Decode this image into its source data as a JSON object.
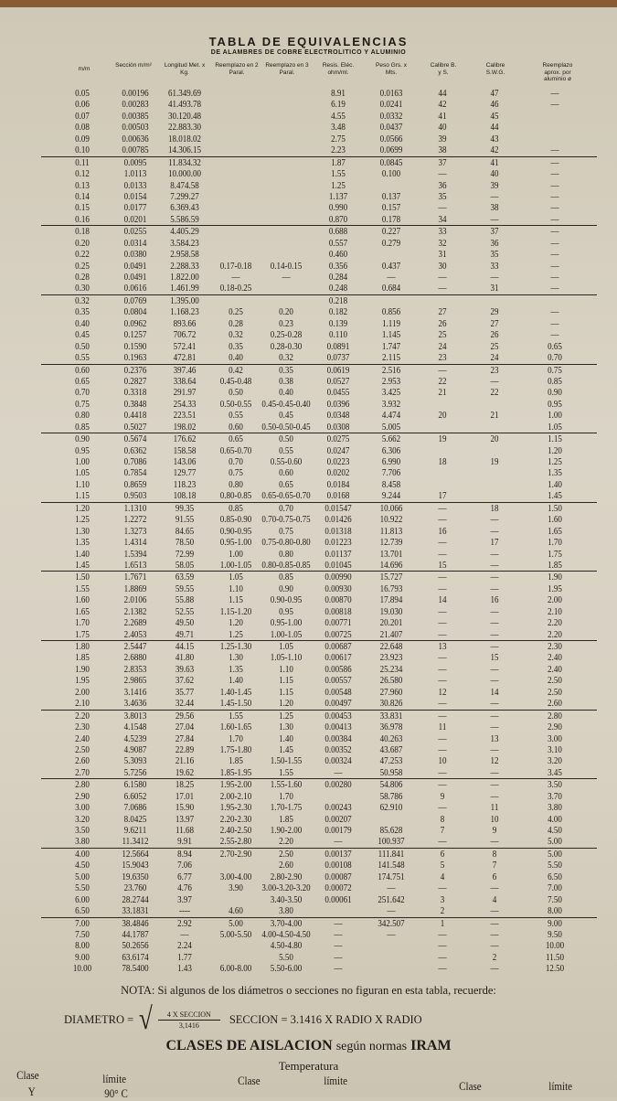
{
  "title": "TABLA DE EQUIVALENCIAS",
  "subtitle": "DE ALAMBRES DE COBRE ELECTROLITICO Y ALUMINIO",
  "columns": [
    "m/m",
    "Sección m/m²",
    "Longitud Met. x Kg.",
    "Reemplazo en 2 Paral.",
    "Reemplazo en 3 Paral.",
    "Resis. Eléc. ohm/ml.",
    "Peso Grs. x Mts.",
    "Calibre B. y S.",
    "Calibre S.W.G.",
    "Reemplazo aprox. por aluminio ø"
  ],
  "rows": [
    [
      "0.05",
      "0.00196",
      "61.349.69",
      "",
      "",
      "8.91",
      "0.0163",
      "44",
      "47",
      "—"
    ],
    [
      "0.06",
      "0.00283",
      "41.493.78",
      "",
      "",
      "6.19",
      "0.0241",
      "42",
      "46",
      "—"
    ],
    [
      "0.07",
      "0.00385",
      "30.120.48",
      "",
      "",
      "4.55",
      "0.0332",
      "41",
      "45",
      ""
    ],
    [
      "0.08",
      "0.00503",
      "22.883.30",
      "",
      "",
      "3.48",
      "0.0437",
      "40",
      "44",
      ""
    ],
    [
      "0.09",
      "0.00636",
      "18.018.02",
      "",
      "",
      "2.75",
      "0.0566",
      "39",
      "43",
      ""
    ],
    [
      "0.10",
      "0.00785",
      "14.306.15",
      "",
      "",
      "2.23",
      "0.0699",
      "38",
      "42",
      "—"
    ],
    [
      "0.11",
      "0.0095",
      "11.834.32",
      "",
      "",
      "1.87",
      "0.0845",
      "37",
      "41",
      "—"
    ],
    [
      "0.12",
      "1.0113",
      "10.000.00",
      "",
      "",
      "1.55",
      "0.100",
      "—",
      "40",
      "—"
    ],
    [
      "0.13",
      "0.0133",
      "8.474.58",
      "",
      "",
      "1.25",
      "",
      "36",
      "39",
      "—"
    ],
    [
      "0.14",
      "0.0154",
      "7.299.27",
      "",
      "",
      "1.137",
      "0.137",
      "35",
      "—",
      "—"
    ],
    [
      "0.15",
      "0.0177",
      "6.369.43",
      "",
      "",
      "0.990",
      "0.157",
      "—",
      "38",
      "—"
    ],
    [
      "0.16",
      "0.0201",
      "5.586.59",
      "",
      "",
      "0.870",
      "0.178",
      "34",
      "—",
      "—"
    ],
    [
      "0.18",
      "0.0255",
      "4.405.29",
      "",
      "",
      "0.688",
      "0.227",
      "33",
      "37",
      "—"
    ],
    [
      "0.20",
      "0.0314",
      "3.584.23",
      "",
      "",
      "0.557",
      "0.279",
      "32",
      "36",
      "—"
    ],
    [
      "0.22",
      "0.0380",
      "2.958.58",
      "",
      "",
      "0.460",
      "",
      "31",
      "35",
      "—"
    ],
    [
      "0.25",
      "0.0491",
      "2.288.33",
      "0.17-0.18",
      "0.14-0.15",
      "0.356",
      "0.437",
      "30",
      "33",
      "—"
    ],
    [
      "0.28",
      "0.0491",
      "1.822.00",
      "—",
      "—",
      "0.284",
      "—",
      "—",
      "—",
      "—"
    ],
    [
      "0.30",
      "0.0616",
      "1.461.99",
      "0.18-0.25",
      "",
      "0.248",
      "0.684",
      "—",
      "31",
      "—"
    ],
    [
      "0.32",
      "0.0769",
      "1.395.00",
      "",
      "",
      "0.218",
      "",
      "",
      "",
      ""
    ],
    [
      "0.35",
      "0.0804",
      "1.168.23",
      "0.25",
      "0.20",
      "0.182",
      "0.856",
      "27",
      "29",
      "—"
    ],
    [
      "0.40",
      "0.0962",
      "893.66",
      "0.28",
      "0.23",
      "0.139",
      "1.119",
      "26",
      "27",
      "—"
    ],
    [
      "0.45",
      "0.1257",
      "706.72",
      "0.32",
      "0.25-0.28",
      "0.110",
      "1.145",
      "25",
      "26",
      "—"
    ],
    [
      "0.50",
      "0.1590",
      "572.41",
      "0.35",
      "0.28-0.30",
      "0.0891",
      "1.747",
      "24",
      "25",
      "0.65"
    ],
    [
      "0.55",
      "0.1963",
      "472.81",
      "0.40",
      "0.32",
      "0.0737",
      "2.115",
      "23",
      "24",
      "0.70"
    ],
    [
      "0.60",
      "0.2376",
      "397.46",
      "0.42",
      "0.35",
      "0.0619",
      "2.516",
      "—",
      "23",
      "0.75"
    ],
    [
      "0.65",
      "0.2827",
      "338.64",
      "0.45-0.48",
      "0.38",
      "0.0527",
      "2.953",
      "22",
      "—",
      "0.85"
    ],
    [
      "0.70",
      "0.3318",
      "291.97",
      "0.50",
      "0.40",
      "0.0455",
      "3.425",
      "21",
      "22",
      "0.90"
    ],
    [
      "0.75",
      "0.3848",
      "254.33",
      "0.50-0.55",
      "0.45-0.45-0.40",
      "0.0396",
      "3.932",
      "",
      "",
      "0.95"
    ],
    [
      "0.80",
      "0.4418",
      "223.51",
      "0.55",
      "0.45",
      "0.0348",
      "4.474",
      "20",
      "21",
      "1.00"
    ],
    [
      "0.85",
      "0.5027",
      "198.02",
      "0.60",
      "0.50-0.50-0.45",
      "0.0308",
      "5.005",
      "",
      "",
      "1.05"
    ],
    [
      "0.90",
      "0.5674",
      "176.62",
      "0.65",
      "0.50",
      "0.0275",
      "5.662",
      "19",
      "20",
      "1.15"
    ],
    [
      "0.95",
      "0.6362",
      "158.58",
      "0.65-0.70",
      "0.55",
      "0.0247",
      "6.306",
      "",
      "",
      "1.20"
    ],
    [
      "1.00",
      "0.7086",
      "143.06",
      "0.70",
      "0.55-0.60",
      "0.0223",
      "6.990",
      "18",
      "19",
      "1.25"
    ],
    [
      "1.05",
      "0.7854",
      "129.77",
      "0.75",
      "0.60",
      "0.0202",
      "7.706",
      "",
      "",
      "1.35"
    ],
    [
      "1.10",
      "0.8659",
      "118.23",
      "0.80",
      "0.65",
      "0.0184",
      "8.458",
      "",
      "",
      "1.40"
    ],
    [
      "1.15",
      "0.9503",
      "108.18",
      "0.80-0.85",
      "0.65-0.65-0.70",
      "0.0168",
      "9.244",
      "17",
      "",
      "1.45"
    ],
    [
      "1.20",
      "1.1310",
      "99.35",
      "0.85",
      "0.70",
      "0.01547",
      "10.066",
      "—",
      "18",
      "1.50"
    ],
    [
      "1.25",
      "1.2272",
      "91.55",
      "0.85-0.90",
      "0.70-0.75-0.75",
      "0.01426",
      "10.922",
      "—",
      "—",
      "1.60"
    ],
    [
      "1.30",
      "1.3273",
      "84.65",
      "0.90-0.95",
      "0.75",
      "0.01318",
      "11.813",
      "16",
      "—",
      "1.65"
    ],
    [
      "1.35",
      "1.4314",
      "78.50",
      "0.95-1.00",
      "0.75-0.80-0.80",
      "0.01223",
      "12.739",
      "—",
      "17",
      "1.70"
    ],
    [
      "1.40",
      "1.5394",
      "72.99",
      "1.00",
      "0.80",
      "0.01137",
      "13.701",
      "—",
      "—",
      "1.75"
    ],
    [
      "1.45",
      "1.6513",
      "58.05",
      "1.00-1.05",
      "0.80-0.85-0.85",
      "0.01045",
      "14.696",
      "15",
      "—",
      "1.85"
    ],
    [
      "1.50",
      "1.7671",
      "63.59",
      "1.05",
      "0.85",
      "0.00990",
      "15.727",
      "—",
      "—",
      "1.90"
    ],
    [
      "1.55",
      "1.8869",
      "59.55",
      "1.10",
      "0.90",
      "0.00930",
      "16.793",
      "—",
      "—",
      "1.95"
    ],
    [
      "1.60",
      "2.0106",
      "55.88",
      "1.15",
      "0.90-0.95",
      "0.00870",
      "17.894",
      "14",
      "16",
      "2.00"
    ],
    [
      "1.65",
      "2.1382",
      "52.55",
      "1.15-1.20",
      "0.95",
      "0.00818",
      "19.030",
      "—",
      "—",
      "2.10"
    ],
    [
      "1.70",
      "2.2689",
      "49.50",
      "1.20",
      "0.95-1.00",
      "0.00771",
      "20.201",
      "—",
      "—",
      "2.20"
    ],
    [
      "1.75",
      "2.4053",
      "49.71",
      "1.25",
      "1.00-1.05",
      "0.00725",
      "21.407",
      "—",
      "—",
      "2.20"
    ],
    [
      "1.80",
      "2.5447",
      "44.15",
      "1.25-1.30",
      "1.05",
      "0.00687",
      "22.648",
      "13",
      "—",
      "2.30"
    ],
    [
      "1.85",
      "2.6880",
      "41.80",
      "1.30",
      "1.05-1.10",
      "0.00617",
      "23.923",
      "—",
      "15",
      "2.40"
    ],
    [
      "1.90",
      "2.8353",
      "39.63",
      "1.35",
      "1.10",
      "0.00586",
      "25.234",
      "—",
      "—",
      "2.40"
    ],
    [
      "1.95",
      "2.9865",
      "37.62",
      "1.40",
      "1.15",
      "0.00557",
      "26.580",
      "—",
      "—",
      "2.50"
    ],
    [
      "2.00",
      "3.1416",
      "35.77",
      "1.40-1.45",
      "1.15",
      "0.00548",
      "27.960",
      "12",
      "14",
      "2.50"
    ],
    [
      "2.10",
      "3.4636",
      "32.44",
      "1.45-1.50",
      "1.20",
      "0.00497",
      "30.826",
      "—",
      "—",
      "2.60"
    ],
    [
      "2.20",
      "3.8013",
      "29.56",
      "1.55",
      "1.25",
      "0.00453",
      "33.831",
      "—",
      "—",
      "2.80"
    ],
    [
      "2.30",
      "4.1548",
      "27.04",
      "1.60-1.65",
      "1.30",
      "0.00413",
      "36.978",
      "11",
      "—",
      "2.90"
    ],
    [
      "2.40",
      "4.5239",
      "27.84",
      "1.70",
      "1.40",
      "0.00384",
      "40.263",
      "—",
      "13",
      "3.00"
    ],
    [
      "2.50",
      "4.9087",
      "22.89",
      "1.75-1.80",
      "1.45",
      "0.00352",
      "43.687",
      "—",
      "—",
      "3.10"
    ],
    [
      "2.60",
      "5.3093",
      "21.16",
      "1.85",
      "1.50-1.55",
      "0.00324",
      "47.253",
      "10",
      "12",
      "3.20"
    ],
    [
      "2.70",
      "5.7256",
      "19.62",
      "1.85-1.95",
      "1.55",
      "—",
      "50.958",
      "—",
      "—",
      "3.45"
    ],
    [
      "2.80",
      "6.1580",
      "18.25",
      "1.95-2.00",
      "1.55-1.60",
      "0.00280",
      "54.806",
      "—",
      "—",
      "3.50"
    ],
    [
      "2.90",
      "6.6052",
      "17.01",
      "2.00-2.10",
      "1.70",
      "",
      "58.786",
      "9",
      "—",
      "3.70"
    ],
    [
      "3.00",
      "7.0686",
      "15.90",
      "1.95-2.30",
      "1.70-1.75",
      "0.00243",
      "62.910",
      "—",
      "11",
      "3.80"
    ],
    [
      "3.20",
      "8.0425",
      "13.97",
      "2.20-2.30",
      "1.85",
      "0.00207",
      "",
      "8",
      "10",
      "4.00"
    ],
    [
      "3.50",
      "9.6211",
      "11.68",
      "2.40-2.50",
      "1.90-2.00",
      "0.00179",
      "85.628",
      "7",
      "9",
      "4.50"
    ],
    [
      "3.80",
      "11.3412",
      "9.91",
      "2.55-2.80",
      "2.20",
      "—",
      "100.937",
      "—",
      "—",
      "5.00"
    ],
    [
      "4.00",
      "12.5664",
      "8.94",
      "2.70-2.90",
      "2.50",
      "0.00137",
      "111.841",
      "6",
      "8",
      "5.00"
    ],
    [
      "4.50",
      "15.9043",
      "7.06",
      "",
      "2.60",
      "0.00108",
      "141.548",
      "5",
      "7",
      "5.50"
    ],
    [
      "5.00",
      "19.6350",
      "6.77",
      "3.00-4.00",
      "2.80-2.90",
      "0.00087",
      "174.751",
      "4",
      "6",
      "6.50"
    ],
    [
      "5.50",
      "23.760",
      "4.76",
      "3.90",
      "3.00-3.20-3.20",
      "0.00072",
      "—",
      "—",
      "—",
      "7.00"
    ],
    [
      "6.00",
      "28.2744",
      "3.97",
      "",
      "3.40-3.50",
      "0.00061",
      "251.642",
      "3",
      "4",
      "7.50"
    ],
    [
      "6.50",
      "33.1831",
      "----",
      "4.60",
      "3.80",
      "",
      "—",
      "2",
      "—",
      "8.00"
    ],
    [
      "7.00",
      "38.4846",
      "2.92",
      "5.00",
      "3.70-4.00",
      "—",
      "342.507",
      "1",
      "—",
      "9.00"
    ],
    [
      "7.50",
      "44.1787",
      "—",
      "5.00-5.50",
      "4.00-4.50-4.50",
      "—",
      "—",
      "—",
      "—",
      "9.50"
    ],
    [
      "8.00",
      "50.2656",
      "2.24",
      "",
      "4.50-4.80",
      "—",
      "",
      "—",
      "—",
      "10.00"
    ],
    [
      "9.00",
      "63.6174",
      "1.77",
      "",
      "5.50",
      "—",
      "",
      "—",
      "2",
      "11.50"
    ],
    [
      "10.00",
      "78.5400",
      "1.43",
      "6.00-8.00",
      "5.50-6.00",
      "—",
      "",
      "—",
      "—",
      "12.50"
    ]
  ],
  "note": "NOTA: Si algunos de los diámetros o secciones no figuran en esta tabla, recuerde:",
  "formula": {
    "lhs": "DIAMETRO =",
    "numerator": "4 X SECCION",
    "denominator": "3,1416",
    "seccion": "SECCION = 3.1416 X RADIO X RADIO"
  },
  "insulation": {
    "title": "CLASES DE AISLACION",
    "title_mid": "según normas",
    "title_end": "IRAM",
    "temperature": "Temperatura",
    "headers": [
      "Clase",
      "límite",
      "Clase",
      "límite",
      "Clase",
      "límite"
    ],
    "first_row": [
      "Y",
      "90° C"
    ]
  }
}
